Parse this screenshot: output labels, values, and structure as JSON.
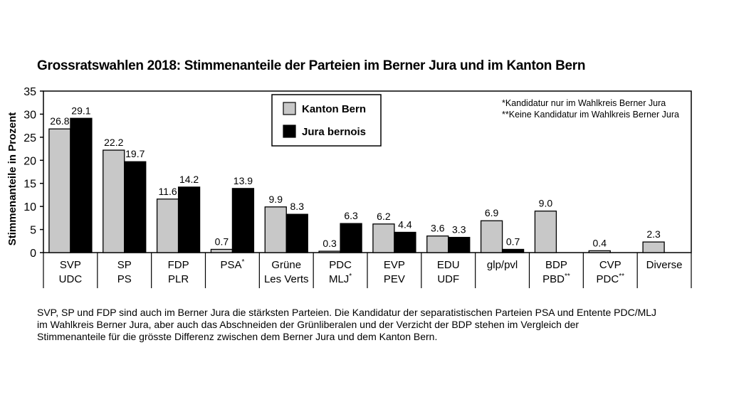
{
  "chart_data": {
    "type": "bar",
    "title": "Grossratswahlen 2018: Stimmenanteile der Parteien im Berner Jura und im Kanton Bern",
    "ylabel": "Stimmenanteile in Prozent",
    "xlabel": "",
    "ylim": [
      0,
      35
    ],
    "yticks": [
      0,
      5,
      10,
      15,
      20,
      25,
      30,
      35
    ],
    "grid": false,
    "legend_position": "top-center",
    "categories": [
      {
        "line1": "SVP",
        "line2": "UDC",
        "sup1": "",
        "sup2": ""
      },
      {
        "line1": "SP",
        "line2": "PS",
        "sup1": "",
        "sup2": ""
      },
      {
        "line1": "FDP",
        "line2": "PLR",
        "sup1": "",
        "sup2": ""
      },
      {
        "line1": "PSA",
        "line2": "",
        "sup1": "*",
        "sup2": ""
      },
      {
        "line1": "Grüne",
        "line2": "Les Verts",
        "sup1": "",
        "sup2": ""
      },
      {
        "line1": "PDC",
        "line2": "MLJ",
        "sup1": "",
        "sup2": "*"
      },
      {
        "line1": "EVP",
        "line2": "PEV",
        "sup1": "",
        "sup2": ""
      },
      {
        "line1": "EDU",
        "line2": "UDF",
        "sup1": "",
        "sup2": ""
      },
      {
        "line1": "glp/pvl",
        "line2": "",
        "sup1": "",
        "sup2": ""
      },
      {
        "line1": "BDP",
        "line2": "PBD",
        "sup1": "",
        "sup2": "**"
      },
      {
        "line1": "CVP",
        "line2": "PDC",
        "sup1": "",
        "sup2": "**"
      },
      {
        "line1": "Diverse",
        "line2": "",
        "sup1": "",
        "sup2": ""
      }
    ],
    "series": [
      {
        "name": "Kanton Bern",
        "color": "#c8c8c8",
        "values": [
          26.8,
          22.2,
          11.6,
          0.7,
          9.9,
          0.3,
          6.2,
          3.6,
          6.9,
          9.0,
          0.4,
          2.3
        ],
        "labels": [
          "26.8",
          "22.2",
          "11.6",
          "0.7",
          "9.9",
          "0.3",
          "6.2",
          "3.6",
          "6.9",
          "9.0",
          "0.4",
          "2.3"
        ]
      },
      {
        "name": "Jura bernois",
        "color": "#000000",
        "values": [
          29.1,
          19.7,
          14.2,
          13.9,
          8.3,
          6.3,
          4.4,
          3.3,
          0.7,
          null,
          null,
          null
        ],
        "labels": [
          "29.1",
          "19.7",
          "14.2",
          "13.9",
          "8.3",
          "6.3",
          "4.4",
          "3.3",
          "0.7",
          "",
          "",
          ""
        ]
      }
    ],
    "notes": [
      "*Kandidatur nur im Wahlkreis Berner Jura",
      "**Keine Kandidatur im Wahlkreis Berner Jura"
    ]
  },
  "caption": [
    "SVP, SP und FDP sind auch im Berner Jura die stärksten Parteien. Die Kandidatur der separatistischen Parteien PSA und Entente PDC/MLJ",
    "im Wahlkreis Berner Jura, aber auch das Abschneiden der Grünliberalen und der Verzicht der BDP stehen im Vergleich der",
    "Stimmenanteile für die grösste Differenz zwischen dem Berner Jura und dem Kanton Bern."
  ]
}
